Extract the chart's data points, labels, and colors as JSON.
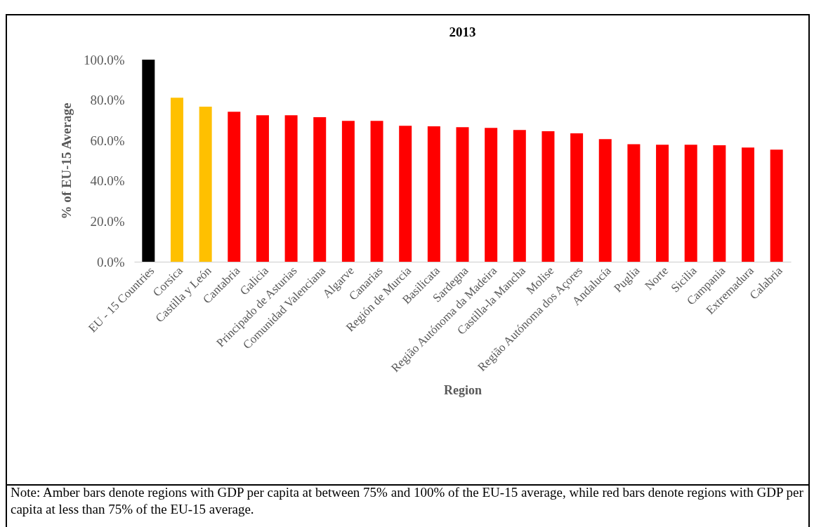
{
  "chart_data": {
    "type": "bar",
    "title": "2013",
    "xlabel": "Region",
    "ylabel": "% of EU-15 Average",
    "categories": [
      "EU - 15 Countries",
      "Corsica",
      "Castilla y León",
      "Cantabria",
      "Galicia",
      "Principado de Asturias",
      "Comunidad Valenciana",
      "Algarve",
      "Canarias",
      "Región de Murcia",
      "Basilicata",
      "Sardegna",
      "Região Autónoma da Madeira",
      "Castilla-la Mancha",
      "Molise",
      "Região Autónoma dos Açores",
      "Andalucía",
      "Puglia",
      "Norte",
      "Sicilia",
      "Campania",
      "Extremadura",
      "Calabria"
    ],
    "values": [
      100,
      81.2,
      76.7,
      74.2,
      72.5,
      72.5,
      71.5,
      69.7,
      69.7,
      67.3,
      67.0,
      66.6,
      66.2,
      65.2,
      64.6,
      63.5,
      60.7,
      58.2,
      57.9,
      57.9,
      57.6,
      56.5,
      55.5
    ],
    "colors": [
      "#000000",
      "#ffc000",
      "#ffc000",
      "#ff0000",
      "#ff0000",
      "#ff0000",
      "#ff0000",
      "#ff0000",
      "#ff0000",
      "#ff0000",
      "#ff0000",
      "#ff0000",
      "#ff0000",
      "#ff0000",
      "#ff0000",
      "#ff0000",
      "#ff0000",
      "#ff0000",
      "#ff0000",
      "#ff0000",
      "#ff0000",
      "#ff0000",
      "#ff0000"
    ],
    "ylim": [
      0,
      100
    ],
    "yticks": [
      {
        "value": 0,
        "label": "0.0%"
      },
      {
        "value": 20,
        "label": "20.0%"
      },
      {
        "value": 40,
        "label": "40.0%"
      },
      {
        "value": 60,
        "label": "60.0%"
      },
      {
        "value": 80,
        "label": "80.0%"
      },
      {
        "value": 100,
        "label": "100.0%"
      }
    ],
    "grid": false,
    "annotations": [
      "Note: Amber bars denote regions with GDP per capita at between 75% and 100% of the EU-15 average, while red bars denote regions with GDP per capita at less than 75% of the EU-15 average."
    ]
  }
}
